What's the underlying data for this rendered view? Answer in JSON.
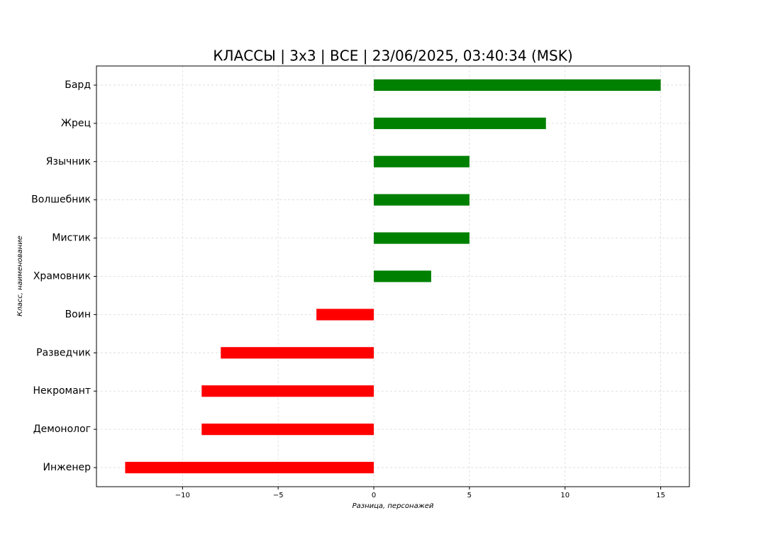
{
  "chart_data": {
    "type": "barh",
    "title": "КЛАССЫ | 3x3 | ВСЕ | 23/06/2025, 03:40:34 (MSK)",
    "xlabel": "Разница, персонажей",
    "ylabel": "Класс, наименование",
    "categories": [
      "Бард",
      "Жрец",
      "Язычник",
      "Волшебник",
      "Мистик",
      "Храмовник",
      "Воин",
      "Разведчик",
      "Некромант",
      "Демонолог",
      "Инженер"
    ],
    "values": [
      15,
      9,
      5,
      5,
      5,
      3,
      -3,
      -8,
      -9,
      -9,
      -13
    ],
    "colors": [
      "#008000",
      "#008000",
      "#008000",
      "#008000",
      "#008000",
      "#008000",
      "#ff0000",
      "#ff0000",
      "#ff0000",
      "#ff0000",
      "#ff0000"
    ],
    "xlim": [
      -14.5,
      16.5
    ],
    "xticks": [
      {
        "value": -10,
        "label": "−10"
      },
      {
        "value": -5,
        "label": "−5"
      },
      0,
      5,
      10,
      15
    ],
    "grid": true
  }
}
